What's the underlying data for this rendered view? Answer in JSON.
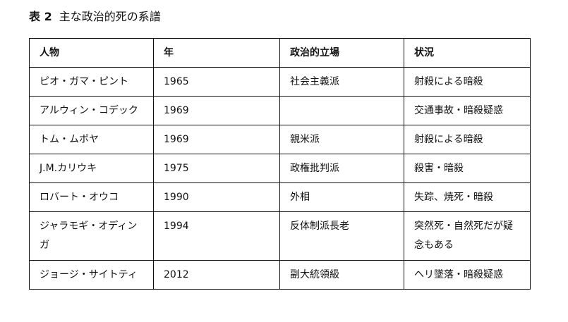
{
  "title": {
    "label": "表 2",
    "text": "主な政治的死の系譜"
  },
  "table": {
    "headers": [
      "人物",
      "年",
      "政治的立場",
      "状況"
    ],
    "rows": [
      [
        "ピオ・ガマ・ピント",
        "1965",
        "社会主義派",
        "射殺による暗殺"
      ],
      [
        "アルウィン・コデック",
        "1969",
        "",
        "交通事故・暗殺疑惑"
      ],
      [
        "トム・ムボヤ",
        "1969",
        "親米派",
        "射殺による暗殺"
      ],
      [
        "J.M.カリウキ",
        "1975",
        "政権批判派",
        "殺害・暗殺"
      ],
      [
        "ロバート・オウコ",
        "1990",
        "外相",
        "失踪、焼死・暗殺"
      ],
      [
        "ジャラモギ・オディンガ",
        "1994",
        "反体制派長老",
        "突然死・自然死だが疑念もある"
      ],
      [
        "ジョージ・サイトティ",
        "2012",
        "副大統領級",
        "ヘリ墜落・暗殺疑惑"
      ]
    ]
  }
}
